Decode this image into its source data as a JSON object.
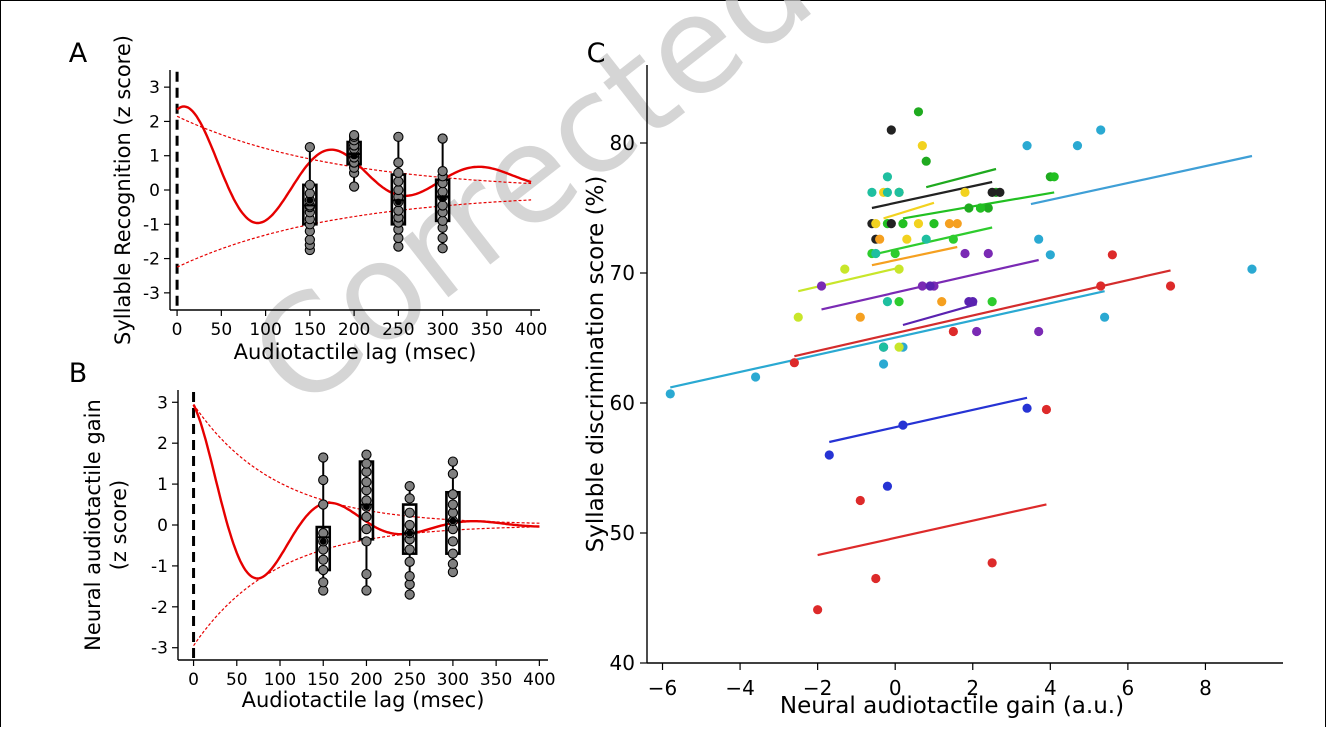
{
  "watermark": "Corrected",
  "colors": {
    "fit": "#e60000",
    "envelope": "#e60000",
    "box": "#000000",
    "point_fill": "#808080",
    "watermark": "#c8c8c8"
  },
  "chart_data": [
    {
      "panel_label": "A",
      "type": "scatter",
      "xlabel": "Audiotactile lag (msec)",
      "ylabel": "Syllable Recognition (z score)",
      "ylabel_lines": [
        "Syllable Recognition (z score)"
      ],
      "xlim": [
        -8,
        410
      ],
      "ylim": [
        -3.5,
        3.5
      ],
      "xticks": [
        0,
        50,
        100,
        150,
        200,
        250,
        300,
        350,
        400
      ],
      "yticks": [
        -3,
        -2,
        -1,
        0,
        1,
        2,
        3
      ],
      "fit": {
        "offset": 0.35,
        "amplitude": 2.2,
        "tau": 180,
        "frequency_hz": 6,
        "phase_deg": -25
      },
      "envelope_offset": -0.05,
      "boxes": [
        {
          "x": 150,
          "q1": -1.0,
          "median": -0.45,
          "q3": 0.15,
          "whisker_low": -1.75,
          "whisker_high": 1.25,
          "mean": -0.3,
          "points": [
            -1.75,
            -1.6,
            -1.45,
            -1.2,
            -1.0,
            -0.85,
            -0.65,
            -0.5,
            -0.45,
            -0.3,
            -0.1,
            0.15,
            1.25
          ]
        },
        {
          "x": 200,
          "q1": 0.75,
          "median": 1.05,
          "q3": 1.4,
          "whisker_low": 0.1,
          "whisker_high": 1.6,
          "mean": 1.0,
          "points": [
            0.1,
            0.5,
            0.65,
            0.8,
            0.95,
            1.05,
            1.2,
            1.3,
            1.45,
            1.55,
            1.6
          ]
        },
        {
          "x": 250,
          "q1": -1.0,
          "median": -0.3,
          "q3": 0.45,
          "whisker_low": -1.65,
          "whisker_high": 1.55,
          "mean": -0.35,
          "points": [
            -1.65,
            -1.4,
            -1.15,
            -0.95,
            -0.8,
            -0.6,
            -0.35,
            -0.2,
            0.0,
            0.25,
            0.5,
            0.8,
            1.55
          ]
        },
        {
          "x": 300,
          "q1": -0.9,
          "median": -0.2,
          "q3": 0.3,
          "whisker_low": -1.7,
          "whisker_high": 1.5,
          "mean": -0.25,
          "points": [
            -1.7,
            -1.4,
            -1.1,
            -0.9,
            -0.65,
            -0.45,
            -0.2,
            -0.05,
            0.2,
            0.4,
            0.55,
            1.5
          ]
        }
      ]
    },
    {
      "panel_label": "B",
      "type": "scatter",
      "xlabel": "Audiotactile lag (msec)",
      "ylabel": "Neural audiotactile gain (z score)",
      "ylabel_lines": [
        "Neural audiotactile gain",
        "(z score)"
      ],
      "xlim": [
        -18,
        410
      ],
      "ylim": [
        -3.3,
        3.3
      ],
      "xticks": [
        0,
        50,
        100,
        150,
        200,
        250,
        300,
        350,
        400
      ],
      "yticks": [
        -3,
        -2,
        -1,
        0,
        1,
        2,
        3
      ],
      "fit": {
        "offset": 0.0,
        "amplitude": 2.95,
        "tau": 95,
        "frequency_hz": 6,
        "phase_deg": 5
      },
      "envelope_offset": 0.0,
      "boxes": [
        {
          "x": 150,
          "q1": -1.1,
          "median": -0.3,
          "q3": -0.05,
          "whisker_low": -1.6,
          "whisker_high": 1.65,
          "mean": -0.4,
          "points": [
            -1.6,
            -1.4,
            -1.1,
            -0.85,
            -0.6,
            -0.4,
            -0.2,
            0.5,
            1.1,
            1.65
          ]
        },
        {
          "x": 200,
          "q1": -0.35,
          "median": 0.5,
          "q3": 1.55,
          "whisker_low": -1.6,
          "whisker_high": 1.72,
          "mean": 0.45,
          "points": [
            -1.6,
            -1.2,
            -0.4,
            -0.1,
            0.2,
            0.45,
            0.6,
            0.85,
            1.05,
            1.3,
            1.5,
            1.72
          ]
        },
        {
          "x": 250,
          "q1": -0.7,
          "median": -0.2,
          "q3": 0.5,
          "whisker_low": -1.7,
          "whisker_high": 0.95,
          "mean": -0.2,
          "points": [
            -1.7,
            -1.45,
            -1.25,
            -0.9,
            -0.6,
            -0.35,
            -0.2,
            0.0,
            0.3,
            0.65,
            0.95
          ]
        },
        {
          "x": 300,
          "q1": -0.7,
          "median": 0.1,
          "q3": 0.8,
          "whisker_low": -1.15,
          "whisker_high": 1.55,
          "mean": 0.1,
          "points": [
            -1.15,
            -0.95,
            -0.7,
            -0.4,
            -0.1,
            0.1,
            0.3,
            0.5,
            0.75,
            1.25,
            1.55
          ]
        }
      ]
    },
    {
      "panel_label": "C",
      "type": "scatter",
      "xlabel": "Neural audiotactile gain (a.u.)",
      "ylabel": "Syllable discrimination score (%)",
      "xlim": [
        -6.4,
        10.0
      ],
      "ylim": [
        40,
        86
      ],
      "xticks": [
        -6,
        -4,
        -2,
        0,
        2,
        4,
        6,
        8
      ],
      "yticks": [
        40,
        50,
        60,
        70,
        80
      ],
      "groups": [
        {
          "color": "#2aa9d2",
          "points": [
            [
              -5.8,
              60.7
            ],
            [
              -3.6,
              62.0
            ],
            [
              -0.3,
              63.0
            ],
            [
              0.2,
              64.3
            ],
            [
              5.4,
              66.6
            ],
            [
              3.7,
              72.6
            ],
            [
              4.7,
              79.8
            ],
            [
              5.3,
              81.0
            ],
            [
              9.2,
              70.3
            ],
            [
              3.4,
              79.8
            ],
            [
              4.0,
              71.4
            ]
          ],
          "line": [
            [
              -5.8,
              61.2
            ],
            [
              5.4,
              68.6
            ]
          ]
        },
        {
          "color": "#3f9fd6",
          "points": [],
          "line": [
            [
              3.5,
              75.3
            ],
            [
              9.2,
              79.0
            ]
          ]
        },
        {
          "color": "#dd2a2a",
          "points": [
            [
              -2.0,
              44.1
            ],
            [
              -0.5,
              46.5
            ],
            [
              -0.9,
              52.5
            ],
            [
              2.5,
              47.7
            ],
            [
              3.9,
              59.5
            ],
            [
              5.6,
              71.4
            ],
            [
              7.1,
              69.0
            ],
            [
              5.3,
              69.0
            ],
            [
              1.5,
              65.5
            ],
            [
              -2.6,
              63.1
            ]
          ],
          "line": [
            [
              -2.0,
              48.3
            ],
            [
              3.9,
              52.2
            ]
          ]
        },
        {
          "color": "#d42c2c",
          "points": [],
          "line": [
            [
              -2.6,
              63.6
            ],
            [
              7.1,
              70.2
            ]
          ]
        },
        {
          "color": "#2633d4",
          "points": [
            [
              -1.7,
              56.0
            ],
            [
              -0.2,
              53.6
            ],
            [
              0.2,
              58.3
            ],
            [
              3.4,
              59.6
            ]
          ],
          "line": [
            [
              -1.7,
              57.0
            ],
            [
              3.4,
              60.4
            ]
          ]
        },
        {
          "color": "#7a2ab4",
          "points": [
            [
              -1.9,
              69.0
            ],
            [
              0.7,
              69.0
            ],
            [
              1.0,
              69.0
            ],
            [
              1.8,
              71.5
            ],
            [
              2.1,
              65.5
            ],
            [
              2.4,
              71.5
            ],
            [
              3.7,
              65.5
            ]
          ],
          "line": [
            [
              -1.9,
              67.2
            ],
            [
              3.7,
              71.0
            ]
          ]
        },
        {
          "color": "#5a22b0",
          "points": [
            [
              -0.3,
              64.3
            ],
            [
              1.9,
              67.8
            ],
            [
              2.0,
              67.8
            ],
            [
              0.9,
              69.0
            ]
          ],
          "line": [
            [
              0.2,
              66.0
            ],
            [
              2.1,
              67.6
            ]
          ]
        },
        {
          "color": "#2ecc2e",
          "points": [
            [
              0.1,
              67.8
            ],
            [
              2.5,
              67.8
            ],
            [
              0.0,
              71.5
            ],
            [
              1.5,
              72.6
            ],
            [
              -0.6,
              71.5
            ]
          ],
          "line": [
            [
              -0.6,
              71.4
            ],
            [
              2.5,
              73.5
            ]
          ]
        },
        {
          "color": "#1faa1f",
          "points": [
            [
              0.6,
              82.4
            ],
            [
              0.8,
              78.6
            ],
            [
              1.9,
              75.0
            ],
            [
              2.2,
              75.0
            ],
            [
              2.4,
              75.0
            ],
            [
              2.6,
              76.2
            ],
            [
              4.0,
              77.4
            ]
          ],
          "line": [
            [
              0.8,
              76.6
            ],
            [
              2.6,
              78.0
            ]
          ]
        },
        {
          "color": "#22c022",
          "points": [
            [
              -0.2,
              73.8
            ],
            [
              0.2,
              73.8
            ],
            [
              1.0,
              73.8
            ],
            [
              2.2,
              75.0
            ],
            [
              4.1,
              77.4
            ],
            [
              0.1,
              76.2
            ]
          ],
          "line": [
            [
              0.2,
              74.2
            ],
            [
              4.1,
              76.2
            ]
          ]
        },
        {
          "color": "#222222",
          "points": [
            [
              -0.1,
              81.0
            ],
            [
              -0.6,
              73.8
            ],
            [
              -0.1,
              73.8
            ],
            [
              -0.5,
              72.6
            ],
            [
              2.5,
              76.2
            ],
            [
              2.7,
              76.2
            ]
          ],
          "line": [
            [
              -0.6,
              75.0
            ],
            [
              2.5,
              77.0
            ]
          ]
        },
        {
          "color": "#f2d21f",
          "points": [
            [
              -0.3,
              76.2
            ],
            [
              0.1,
              76.2
            ],
            [
              0.7,
              79.8
            ],
            [
              0.6,
              73.8
            ],
            [
              0.3,
              72.6
            ],
            [
              -0.5,
              73.8
            ],
            [
              1.8,
              76.2
            ]
          ],
          "line": [
            [
              -0.3,
              74.2
            ],
            [
              1.0,
              75.4
            ]
          ]
        },
        {
          "color": "#c8e62a",
          "points": [
            [
              -2.5,
              66.6
            ],
            [
              -1.3,
              70.3
            ],
            [
              0.1,
              64.3
            ],
            [
              0.1,
              70.3
            ]
          ],
          "line": [
            [
              -2.5,
              68.6
            ],
            [
              0.1,
              70.4
            ]
          ]
        },
        {
          "color": "#f5a020",
          "points": [
            [
              1.2,
              67.8
            ],
            [
              1.6,
              73.8
            ],
            [
              1.4,
              73.8
            ],
            [
              -0.9,
              66.6
            ],
            [
              -0.4,
              72.6
            ]
          ],
          "line": [
            [
              -0.6,
              70.6
            ],
            [
              1.6,
              72.0
            ]
          ]
        },
        {
          "color": "#1fbfa0",
          "points": [
            [
              -0.6,
              76.2
            ],
            [
              -0.2,
              77.4
            ],
            [
              -0.2,
              76.2
            ],
            [
              -0.2,
              67.8
            ],
            [
              0.8,
              72.6
            ],
            [
              -0.5,
              71.5
            ],
            [
              0.1,
              76.2
            ],
            [
              -0.3,
              64.3
            ]
          ],
          "line": []
        }
      ]
    }
  ]
}
